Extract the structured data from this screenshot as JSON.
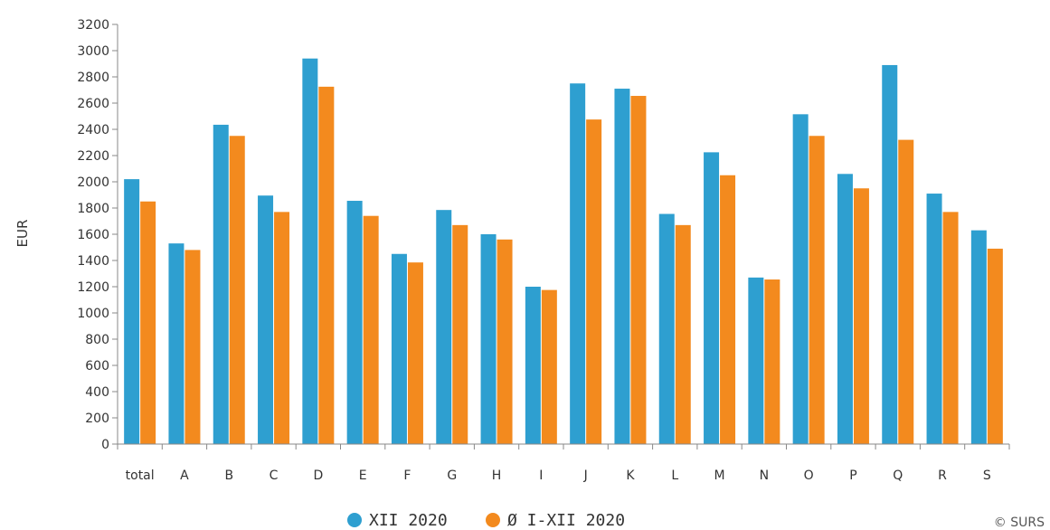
{
  "chart_data": {
    "type": "bar",
    "title": "",
    "xlabel": "",
    "ylabel": "EUR",
    "ylim": [
      0,
      3200
    ],
    "yticks": [
      0,
      200,
      400,
      600,
      800,
      1000,
      1200,
      1400,
      1600,
      1800,
      2000,
      2200,
      2400,
      2600,
      2800,
      3000,
      3200
    ],
    "categories": [
      "total",
      "A",
      "B",
      "C",
      "D",
      "E",
      "F",
      "G",
      "H",
      "I",
      "J",
      "K",
      "L",
      "M",
      "N",
      "O",
      "P",
      "Q",
      "R",
      "S"
    ],
    "series": [
      {
        "name": "XII 2020",
        "color": "#2e9fd0",
        "values": [
          2020,
          1530,
          2435,
          1895,
          2940,
          1855,
          1450,
          1785,
          1600,
          1200,
          2750,
          2710,
          1755,
          2225,
          1270,
          2515,
          2060,
          2890,
          1910,
          1630
        ]
      },
      {
        "name": "Ø I-XII 2020",
        "color": "#f38a1e",
        "values": [
          1850,
          1480,
          2350,
          1770,
          2725,
          1740,
          1385,
          1670,
          1560,
          1175,
          2475,
          2655,
          1670,
          2050,
          1255,
          2350,
          1950,
          2320,
          1770,
          1490
        ]
      }
    ],
    "grid": false,
    "legend_position": "bottom-center"
  },
  "credit": "© SURS"
}
